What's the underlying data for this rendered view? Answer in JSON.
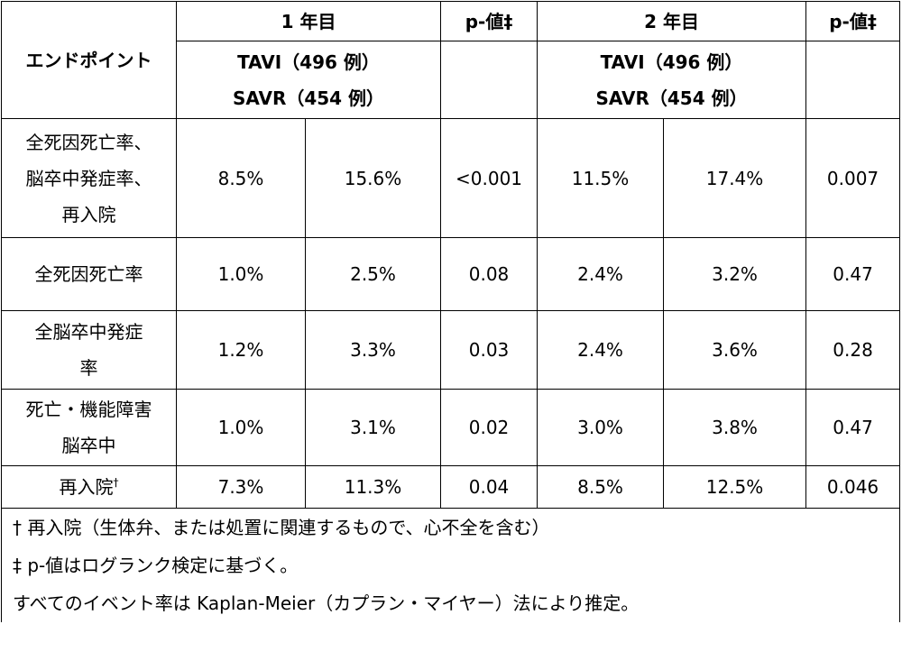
{
  "table": {
    "header": {
      "endpoint": "エンドポイント",
      "year1": "1 年目",
      "p1": "p-値‡",
      "year2": "2 年目",
      "p2": "p-値‡",
      "tavi1": "TAVI（496 例）",
      "savr1": "SAVR（454 例）",
      "tavi2": "TAVI（496 例）",
      "savr2": "SAVR（454 例）"
    },
    "rows": [
      {
        "label": [
          "全死因死亡率、",
          "脳卒中発症率、",
          "再入院"
        ],
        "cells": [
          "8.5%",
          "15.6%",
          "<0.001",
          "11.5%",
          "17.4%",
          "0.007"
        ]
      },
      {
        "label": [
          "全死因死亡率"
        ],
        "cells": [
          "1.0%",
          "2.5%",
          "0.08",
          "2.4%",
          "3.2%",
          "0.47"
        ]
      },
      {
        "label": [
          "全脳卒中発症",
          "率"
        ],
        "cells": [
          "1.2%",
          "3.3%",
          "0.03",
          "2.4%",
          "3.6%",
          "0.28"
        ]
      },
      {
        "label": [
          "死亡・機能障害",
          "脳卒中"
        ],
        "cells": [
          "1.0%",
          "3.1%",
          "0.02",
          "3.0%",
          "3.8%",
          "0.47"
        ]
      },
      {
        "label": [
          "再入院"
        ],
        "note": "†",
        "cells": [
          "7.3%",
          "11.3%",
          "0.04",
          "8.5%",
          "12.5%",
          "0.046"
        ]
      }
    ],
    "footnotes": [
      "† 再入院（生体弁、または処置に関連するもので、心不全を含む）",
      "‡ p-値はログランク検定に基づく。",
      "すべてのイベント率は Kaplan-Meier（カプラン・マイヤー）法により推定。"
    ]
  }
}
